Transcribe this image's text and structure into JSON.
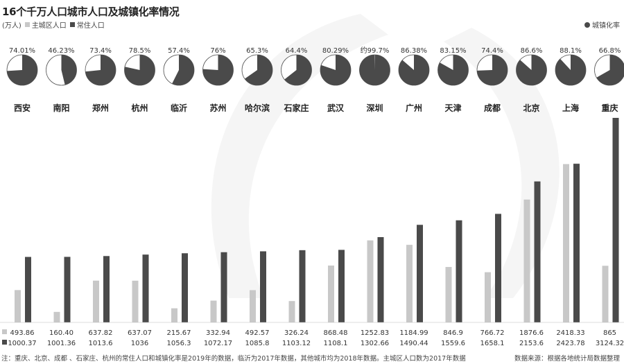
{
  "title": "16个千万人口城市人口及城镇化率情况",
  "legend": {
    "unit": "(万人)",
    "main_label": "主城区人口",
    "perm_label": "常住人口",
    "rate_label": "城镇化率"
  },
  "colors": {
    "main": "#c8c8c8",
    "perm": "#4a4a4a",
    "pie_fill": "#4a4a4a",
    "pie_bg": "#ffffff",
    "rate_legend": "#4a4a4a"
  },
  "footnote": "注：重庆、北京、成都 、石家庄、杭州的常住人口和城镇化率是2019年的数据，临沂为2017年数据，其他城市均为2018年数据。主城区人口数为2017年数据",
  "source": "数据来源：根据各地统计局数据整理",
  "chart_data": {
    "type": "bar",
    "categories": [
      "西安",
      "南阳",
      "郑州",
      "杭州",
      "临沂",
      "苏州",
      "哈尔滨",
      "石家庄",
      "武汉",
      "深圳",
      "广州",
      "天津",
      "成都",
      "北京",
      "上海",
      "重庆"
    ],
    "series": [
      {
        "name": "主城区人口",
        "values": [
          493.86,
          160.4,
          637.82,
          637.07,
          215.67,
          332.94,
          492.57,
          326.24,
          868.48,
          1252.83,
          1184.99,
          846.9,
          766.72,
          1876.6,
          2418.33,
          865
        ],
        "labels": [
          "493.86",
          "160.40",
          "637.82",
          "637.07",
          "215.67",
          "332.94",
          "492.57",
          "326.24",
          "868.48",
          "1252.83",
          "1184.99",
          "846.9",
          "766.72",
          "1876.6",
          "2418.33",
          "865"
        ]
      },
      {
        "name": "常住人口",
        "values": [
          1000.37,
          1001.36,
          1013.6,
          1036,
          1056.3,
          1072.17,
          1085.8,
          1103.12,
          1108.1,
          1302.66,
          1490.44,
          1559.6,
          1658.1,
          2153.6,
          2423.78,
          3124.32
        ],
        "labels": [
          "1000.37",
          "1001.36",
          "1013.6",
          "1036",
          "1056.3",
          "1072.17",
          "1085.8",
          "1103.12",
          "1108.1",
          "1302.66",
          "1490.44",
          "1559.6",
          "1658.1",
          "2153.6",
          "2423.78",
          "3124.32"
        ]
      }
    ],
    "urbanization": {
      "name": "城镇化率",
      "values": [
        74.01,
        46.23,
        73.4,
        78.5,
        57.4,
        76,
        65.3,
        64.4,
        80.29,
        99.7,
        86.38,
        83.15,
        74.4,
        86.6,
        88.1,
        66.8
      ],
      "labels": [
        "74.01%",
        "46.23%",
        "73.4%",
        "78.5%",
        "57.4%",
        "76%",
        "65.3%",
        "64.4%",
        "80.29%",
        "约99.7%",
        "86.38%",
        "83.15%",
        "74.4%",
        "86.6%",
        "88.1%",
        "66.8%"
      ]
    },
    "ylim": [
      0,
      3124.32
    ],
    "grid": false
  }
}
